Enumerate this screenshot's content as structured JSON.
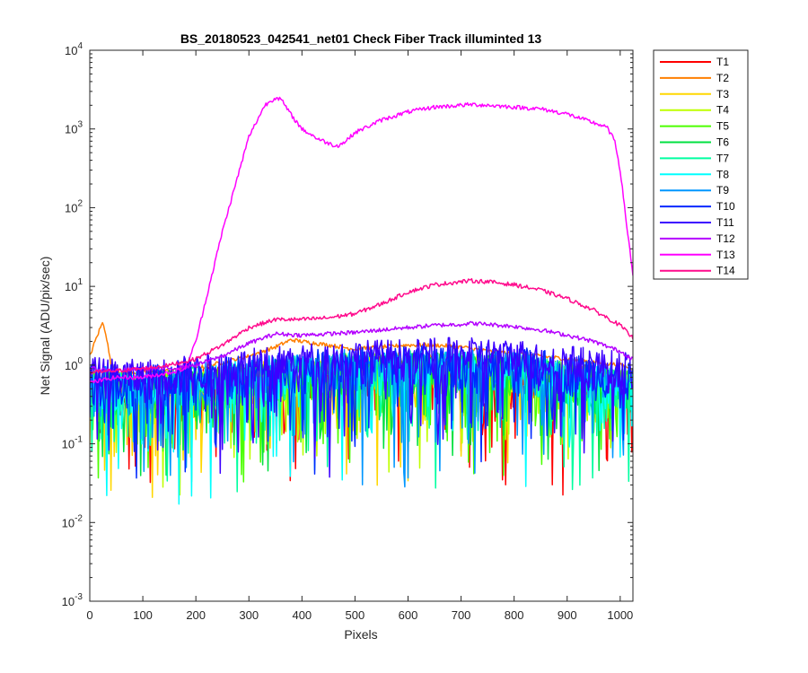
{
  "chart_data": {
    "type": "line",
    "title": "BS_20180523_042541_net01   Check Fiber     Track illuminted 13",
    "xlabel": "Pixels",
    "ylabel": "Net Signal (ADU/pix/sec)",
    "xlim": [
      0,
      1024
    ],
    "ylim": [
      0.001,
      10000
    ],
    "yscale": "log",
    "grid": false,
    "legend_position": "outside-top-right",
    "x_ticks": [
      {
        "value": 0,
        "label": "0"
      },
      {
        "value": 100,
        "label": "100"
      },
      {
        "value": 200,
        "label": "200"
      },
      {
        "value": 300,
        "label": "300"
      },
      {
        "value": 400,
        "label": "400"
      },
      {
        "value": 500,
        "label": "500"
      },
      {
        "value": 600,
        "label": "600"
      },
      {
        "value": 700,
        "label": "700"
      },
      {
        "value": 800,
        "label": "800"
      },
      {
        "value": 900,
        "label": "900"
      },
      {
        "value": 1000,
        "label": "1000"
      }
    ],
    "y_ticks": [
      {
        "value": 0.001,
        "base": "10",
        "exp": "-3"
      },
      {
        "value": 0.01,
        "base": "10",
        "exp": "-2"
      },
      {
        "value": 0.1,
        "base": "10",
        "exp": "-1"
      },
      {
        "value": 1,
        "base": "10",
        "exp": "0"
      },
      {
        "value": 10,
        "base": "10",
        "exp": "1"
      },
      {
        "value": 100,
        "base": "10",
        "exp": "2"
      },
      {
        "value": 1000,
        "base": "10",
        "exp": "3"
      },
      {
        "value": 10000,
        "base": "10",
        "exp": "4"
      }
    ],
    "series": [
      {
        "name": "T1",
        "color": "#ff0000",
        "noisy": true,
        "x": [
          0,
          100,
          200,
          300,
          400,
          500,
          600,
          700,
          800,
          900,
          1024
        ],
        "y": [
          0.5,
          0.4,
          0.5,
          0.6,
          0.7,
          0.75,
          0.8,
          0.8,
          0.75,
          0.6,
          0.5
        ]
      },
      {
        "name": "T2",
        "color": "#ff7f00",
        "noisy": false,
        "x": [
          0,
          10,
          20,
          25,
          30,
          40,
          60,
          100,
          200,
          300,
          350,
          380,
          400,
          450,
          500,
          550,
          600,
          650,
          700,
          750,
          800,
          900,
          1000,
          1024
        ],
        "y": [
          1.3,
          2.0,
          3.0,
          3.5,
          2.6,
          1.0,
          0.8,
          0.8,
          0.9,
          1.3,
          1.7,
          2.1,
          2.0,
          1.8,
          1.6,
          1.7,
          1.8,
          1.8,
          1.7,
          1.5,
          1.4,
          1.2,
          1.0,
          0.9
        ]
      },
      {
        "name": "T3",
        "color": "#ffd700",
        "noisy": true,
        "x": [
          0,
          100,
          200,
          300,
          400,
          500,
          600,
          700,
          800,
          900,
          1024
        ],
        "y": [
          0.5,
          0.4,
          0.5,
          0.6,
          0.7,
          0.8,
          0.8,
          0.8,
          0.75,
          0.6,
          0.5
        ]
      },
      {
        "name": "T4",
        "color": "#bfff00",
        "noisy": true,
        "x": [
          0,
          100,
          200,
          300,
          400,
          500,
          600,
          700,
          800,
          900,
          1024
        ],
        "y": [
          0.5,
          0.4,
          0.5,
          0.6,
          0.7,
          0.8,
          0.8,
          0.8,
          0.75,
          0.6,
          0.5
        ]
      },
      {
        "name": "T5",
        "color": "#4cff00",
        "noisy": true,
        "x": [
          0,
          100,
          200,
          300,
          400,
          500,
          600,
          700,
          800,
          900,
          1024
        ],
        "y": [
          0.5,
          0.45,
          0.5,
          0.6,
          0.7,
          0.8,
          0.8,
          0.8,
          0.75,
          0.6,
          0.5
        ]
      },
      {
        "name": "T6",
        "color": "#00e040",
        "noisy": true,
        "x": [
          0,
          100,
          200,
          300,
          400,
          500,
          600,
          700,
          800,
          900,
          1024
        ],
        "y": [
          0.45,
          0.4,
          0.5,
          0.6,
          0.7,
          0.8,
          0.8,
          0.8,
          0.75,
          0.6,
          0.5
        ]
      },
      {
        "name": "T7",
        "color": "#00ffa0",
        "noisy": true,
        "x": [
          0,
          100,
          200,
          300,
          400,
          500,
          600,
          700,
          800,
          900,
          1024
        ],
        "y": [
          0.5,
          0.45,
          0.55,
          0.65,
          0.75,
          0.8,
          0.85,
          0.85,
          0.8,
          0.65,
          0.5
        ]
      },
      {
        "name": "T8",
        "color": "#00ffff",
        "noisy": true,
        "x": [
          0,
          100,
          200,
          300,
          400,
          500,
          600,
          700,
          800,
          900,
          1024
        ],
        "y": [
          0.5,
          0.45,
          0.55,
          0.65,
          0.75,
          0.8,
          0.85,
          0.85,
          0.8,
          0.65,
          0.5
        ]
      },
      {
        "name": "T9",
        "color": "#0096ff",
        "noisy": true,
        "x": [
          0,
          100,
          200,
          300,
          400,
          500,
          600,
          700,
          800,
          900,
          1024
        ],
        "y": [
          0.55,
          0.5,
          0.6,
          0.7,
          0.8,
          0.9,
          0.9,
          0.9,
          0.85,
          0.7,
          0.55
        ]
      },
      {
        "name": "T10",
        "color": "#0028ff",
        "noisy": true,
        "x": [
          0,
          100,
          200,
          300,
          400,
          500,
          600,
          700,
          800,
          900,
          1024
        ],
        "y": [
          0.6,
          0.55,
          0.65,
          0.75,
          0.85,
          0.95,
          1.0,
          1.0,
          0.95,
          0.8,
          0.6
        ]
      },
      {
        "name": "T11",
        "color": "#3c00ff",
        "noisy": true,
        "x": [
          0,
          100,
          200,
          300,
          400,
          500,
          600,
          700,
          800,
          900,
          1024
        ],
        "y": [
          0.7,
          0.65,
          0.75,
          0.9,
          1.05,
          1.15,
          1.2,
          1.25,
          1.2,
          1.0,
          0.8
        ]
      },
      {
        "name": "T12",
        "color": "#b400ff",
        "noisy": false,
        "x": [
          0,
          50,
          100,
          150,
          200,
          250,
          300,
          350,
          400,
          450,
          500,
          550,
          600,
          650,
          700,
          720,
          750,
          800,
          850,
          900,
          950,
          1000,
          1024
        ],
        "y": [
          0.9,
          0.85,
          0.9,
          0.9,
          1.0,
          1.3,
          1.9,
          2.5,
          2.4,
          2.5,
          2.6,
          2.8,
          3.0,
          3.2,
          3.3,
          3.4,
          3.3,
          3.1,
          2.8,
          2.4,
          2.0,
          1.5,
          1.2
        ]
      },
      {
        "name": "T13",
        "color": "#ff00ff",
        "noisy": false,
        "x": [
          0,
          50,
          100,
          150,
          180,
          200,
          250,
          300,
          330,
          350,
          360,
          380,
          400,
          430,
          460,
          470,
          480,
          500,
          550,
          600,
          650,
          700,
          720,
          750,
          800,
          850,
          900,
          950,
          975,
          990,
          1000,
          1010,
          1024
        ],
        "y": [
          0.6,
          0.7,
          0.7,
          0.8,
          0.9,
          2.0,
          50,
          800,
          2000,
          2500,
          2400,
          1500,
          1000,
          750,
          620,
          620,
          680,
          900,
          1300,
          1650,
          1900,
          2000,
          2050,
          2000,
          1900,
          1800,
          1550,
          1200,
          1050,
          700,
          300,
          80,
          14
        ]
      },
      {
        "name": "T14",
        "color": "#ff0a8c",
        "noisy": false,
        "x": [
          0,
          50,
          100,
          150,
          200,
          250,
          300,
          350,
          400,
          450,
          500,
          550,
          600,
          650,
          700,
          720,
          750,
          800,
          850,
          900,
          950,
          1000,
          1024
        ],
        "y": [
          0.8,
          0.85,
          0.9,
          1.0,
          1.2,
          1.8,
          3.0,
          3.8,
          3.8,
          4.0,
          4.5,
          6.0,
          8.5,
          10.5,
          11.5,
          11.8,
          11.5,
          10.5,
          9.0,
          7.0,
          5.0,
          3.2,
          2.2
        ]
      }
    ]
  }
}
